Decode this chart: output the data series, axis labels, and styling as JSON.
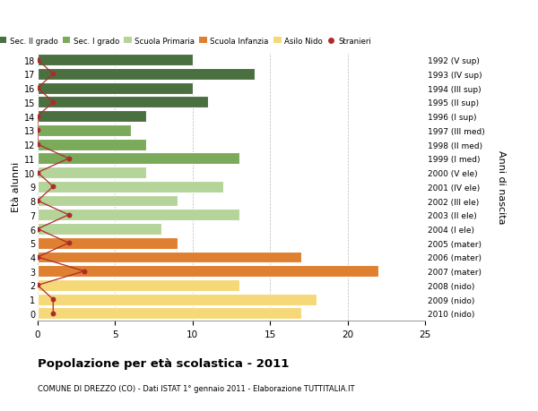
{
  "ages": [
    18,
    17,
    16,
    15,
    14,
    13,
    12,
    11,
    10,
    9,
    8,
    7,
    6,
    5,
    4,
    3,
    2,
    1,
    0
  ],
  "values": [
    10,
    14,
    10,
    11,
    7,
    6,
    7,
    13,
    7,
    12,
    9,
    13,
    8,
    9,
    17,
    22,
    13,
    18,
    17
  ],
  "stranieri": [
    0,
    1,
    0,
    1,
    0,
    0,
    0,
    2,
    0,
    1,
    0,
    2,
    0,
    2,
    0,
    3,
    0,
    1,
    1
  ],
  "right_labels": [
    "1992 (V sup)",
    "1993 (IV sup)",
    "1994 (III sup)",
    "1995 (II sup)",
    "1996 (I sup)",
    "1997 (III med)",
    "1998 (II med)",
    "1999 (I med)",
    "2000 (V ele)",
    "2001 (IV ele)",
    "2002 (III ele)",
    "2003 (II ele)",
    "2004 (I ele)",
    "2005 (mater)",
    "2006 (mater)",
    "2007 (mater)",
    "2008 (nido)",
    "2009 (nido)",
    "2010 (nido)"
  ],
  "bar_colors": [
    "#4a7040",
    "#4a7040",
    "#4a7040",
    "#4a7040",
    "#4a7040",
    "#7aaa5a",
    "#7aaa5a",
    "#7aaa5a",
    "#b5d49a",
    "#b5d49a",
    "#b5d49a",
    "#b5d49a",
    "#b5d49a",
    "#de8030",
    "#de8030",
    "#de8030",
    "#f5d878",
    "#f5d878",
    "#f5d878"
  ],
  "legend_colors": [
    "#4a7040",
    "#7aaa5a",
    "#b5d49a",
    "#de8030",
    "#f5d878",
    "#b0292b"
  ],
  "legend_labels": [
    "Sec. II grado",
    "Sec. I grado",
    "Scuola Primaria",
    "Scuola Infanzia",
    "Asilo Nido",
    "Stranieri"
  ],
  "title": "Popolazione per età scolastica - 2011",
  "subtitle": "COMUNE DI DREZZO (CO) - Dati ISTAT 1° gennaio 2011 - Elaborazione TUTTITALIA.IT",
  "ylabel_left": "Età alunni",
  "ylabel_right": "Anni di nascita",
  "xlim": [
    0,
    25
  ],
  "xticks": [
    0,
    5,
    10,
    15,
    20,
    25
  ],
  "stranieri_color": "#b0292b",
  "line_color": "#b0292b",
  "background_color": "#ffffff",
  "bar_height": 0.82
}
